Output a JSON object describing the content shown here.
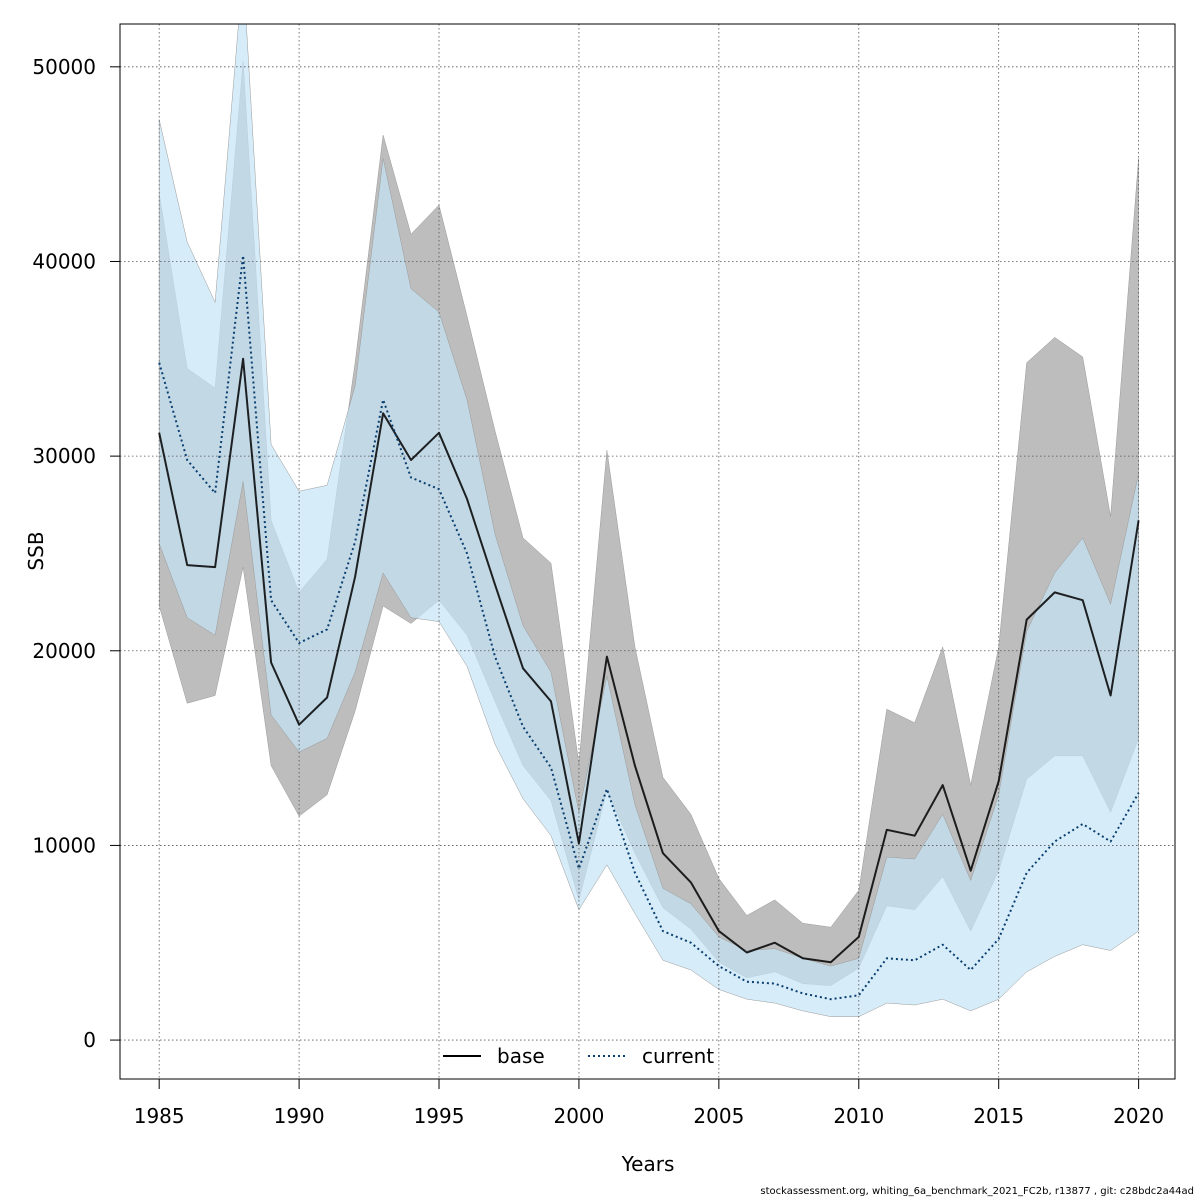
{
  "chart_data": {
    "type": "line",
    "xlabel": "Years",
    "ylabel": "SSB",
    "xlim": [
      1983.6,
      2021.3
    ],
    "ylim": [
      -2000,
      52200
    ],
    "x_ticks": [
      1985,
      1990,
      1995,
      2000,
      2005,
      2010,
      2015,
      2020
    ],
    "y_ticks": [
      0,
      10000,
      20000,
      30000,
      40000,
      50000
    ],
    "grid": true,
    "legend_position": "bottom-center",
    "x": [
      1985,
      1986,
      1987,
      1988,
      1989,
      1990,
      1991,
      1992,
      1993,
      1994,
      1995,
      1996,
      1997,
      1998,
      1999,
      2000,
      2001,
      2002,
      2003,
      2004,
      2005,
      2006,
      2007,
      2008,
      2009,
      2010,
      2011,
      2012,
      2013,
      2014,
      2015,
      2016,
      2017,
      2018,
      2019,
      2020
    ],
    "series": [
      {
        "name": "base",
        "line_style": "solid",
        "line_color": "#000000",
        "band_color": "#bdbdbd",
        "values": [
          31200,
          24400,
          24300,
          35000,
          19400,
          16200,
          17600,
          23800,
          32200,
          29800,
          31200,
          27800,
          23400,
          19100,
          17400,
          10100,
          19700,
          14100,
          9600,
          8100,
          5600,
          4500,
          5000,
          4200,
          4000,
          5300,
          10800,
          10500,
          13100,
          8700,
          13300,
          21600,
          23000,
          22600,
          17700,
          26700
        ],
        "upper_95": [
          43500,
          34500,
          33500,
          50300,
          26700,
          23000,
          24700,
          34800,
          46500,
          41400,
          42900,
          37200,
          31300,
          25800,
          24500,
          14200,
          30300,
          20200,
          13500,
          11600,
          8300,
          6400,
          7200,
          6000,
          5800,
          7700,
          17000,
          16300,
          20200,
          13100,
          20200,
          34800,
          36100,
          35100,
          26900,
          45300
        ],
        "lower_95": [
          22300,
          17300,
          17700,
          24300,
          14100,
          11500,
          12600,
          16900,
          22300,
          21400,
          22600,
          20800,
          17400,
          14100,
          12300,
          7200,
          12800,
          9600,
          6800,
          5700,
          4000,
          3200,
          3500,
          2900,
          2800,
          3700,
          6900,
          6700,
          8400,
          5600,
          8700,
          13400,
          14600,
          14600,
          11700,
          15500
        ]
      },
      {
        "name": "current",
        "line_style": "dotted",
        "line_color": "#0a3e70",
        "band_color": "#c5e4f5",
        "values": [
          34800,
          29800,
          28100,
          40300,
          22600,
          20400,
          21100,
          25600,
          32900,
          28900,
          28300,
          25000,
          19700,
          16100,
          14000,
          8800,
          12900,
          8600,
          5600,
          5000,
          3800,
          3000,
          2900,
          2400,
          2100,
          2300,
          4200,
          4100,
          4900,
          3600,
          5200,
          8600,
          10200,
          11100,
          10200,
          12700
        ],
        "upper_95": [
          47300,
          41000,
          37900,
          55000,
          30600,
          28200,
          28500,
          33600,
          45300,
          38600,
          37400,
          32900,
          26000,
          21300,
          18900,
          11700,
          18700,
          12100,
          7800,
          7000,
          5300,
          4600,
          4700,
          4200,
          3800,
          4200,
          9400,
          9300,
          11600,
          8200,
          12600,
          21000,
          24000,
          25800,
          22400,
          29100
        ],
        "lower_95": [
          25500,
          21700,
          20800,
          28700,
          16700,
          14800,
          15500,
          18900,
          24000,
          21700,
          21500,
          19200,
          15200,
          12400,
          10500,
          6700,
          9000,
          6500,
          4100,
          3600,
          2600,
          2100,
          1900,
          1500,
          1200,
          1200,
          1900,
          1800,
          2100,
          1500,
          2100,
          3500,
          4300,
          4900,
          4600,
          5600
        ]
      }
    ]
  },
  "footer": "stockassessment.org, whiting_6a_benchmark_2021_FC2b, r13877 , git: c28bdc2a44ad"
}
